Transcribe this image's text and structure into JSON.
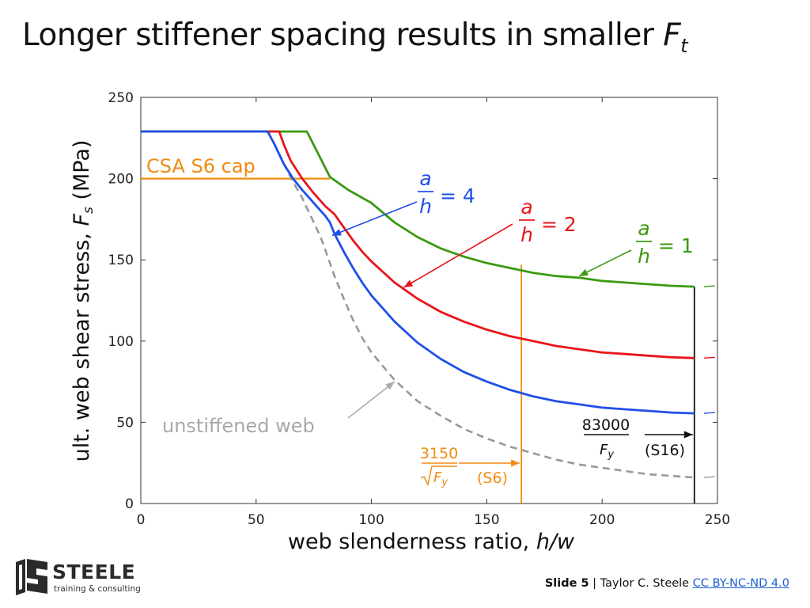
{
  "slide": {
    "title": "Longer stiffener spacing results in smaller ",
    "title_symbol": "F",
    "title_symbol_sub": "t"
  },
  "footer": {
    "slide_label": "Slide 5",
    "separator": " | ",
    "author": "Taylor C. Steele ",
    "license": "CC BY-NC-ND 4.0"
  },
  "logo": {
    "name": "STEELE",
    "tagline": "training & consulting"
  },
  "chart_data": {
    "type": "line",
    "xlabel_text": "web slenderness ratio, ",
    "xlabel_symbol": "h/w",
    "ylabel_text": "ult. web shear stress, ",
    "ylabel_symbol": "F",
    "ylabel_symbol_sub": "s",
    "ylabel_unit": " (MPa)",
    "xlim": [
      0,
      250
    ],
    "ylim": [
      0,
      250
    ],
    "xticks": [
      0,
      50,
      100,
      150,
      200,
      250
    ],
    "yticks": [
      0,
      50,
      100,
      150,
      200,
      250
    ],
    "grid": false,
    "colors": {
      "a_h_4": "#1f4fe8",
      "a_h_2": "#e8151b",
      "a_h_1": "#3a9a12",
      "unstiffened": "#999999",
      "csa": "#f08b12",
      "limit": "#111111"
    },
    "series": [
      {
        "key": "a_h_4",
        "label_num": "a",
        "label_den": "h",
        "label_eq": "= 4",
        "x": [
          0,
          55,
          58,
          62,
          66,
          70,
          75,
          80,
          82,
          84,
          88,
          92,
          96,
          100,
          110,
          120,
          130,
          140,
          150,
          160,
          170,
          180,
          190,
          200,
          210,
          220,
          230,
          240
        ],
        "y": [
          229,
          229,
          221,
          209,
          200,
          193,
          185,
          177,
          173,
          166,
          155,
          145,
          136,
          128,
          112,
          99,
          89,
          81,
          75,
          70,
          66,
          63,
          61,
          59,
          58,
          57,
          56,
          55.5
        ]
      },
      {
        "key": "a_h_2",
        "label_num": "a",
        "label_den": "h",
        "label_eq": "= 2",
        "x": [
          0,
          57,
          60,
          62,
          65,
          70,
          75,
          80,
          84,
          88,
          92,
          96,
          100,
          110,
          120,
          130,
          140,
          150,
          160,
          170,
          180,
          190,
          200,
          210,
          220,
          230,
          240
        ],
        "y": [
          229,
          229,
          229,
          221,
          211,
          200,
          191,
          183,
          178,
          170,
          162,
          155,
          149,
          136,
          126,
          118,
          112,
          107,
          103,
          100,
          97,
          95,
          93,
          92,
          91,
          90,
          89.5
        ]
      },
      {
        "key": "a_h_1",
        "label_num": "a",
        "label_den": "h",
        "label_eq": "= 1",
        "x": [
          0,
          72,
          82,
          90,
          100,
          110,
          120,
          130,
          140,
          150,
          160,
          170,
          180,
          190,
          200,
          210,
          220,
          230,
          240
        ],
        "y": [
          229,
          229,
          201,
          193,
          185,
          173,
          164,
          157,
          152,
          148,
          145,
          142,
          140,
          139,
          137,
          136,
          135,
          134,
          133.5
        ]
      },
      {
        "key": "unstiffened",
        "label": "unstiffened web",
        "x": [
          55,
          58,
          62,
          66,
          70,
          75,
          78,
          80,
          84,
          88,
          92,
          96,
          100,
          110,
          120,
          130,
          140,
          150,
          160,
          170,
          180,
          190,
          200,
          210,
          220,
          230,
          240
        ],
        "y": [
          229,
          221,
          209,
          198,
          188,
          173,
          164,
          156,
          140,
          126,
          113,
          102,
          93,
          76,
          63,
          54,
          46,
          40,
          35,
          31,
          27,
          24,
          22,
          20,
          18,
          17,
          16
        ]
      }
    ],
    "extensions": [
      {
        "key": "a_h_1",
        "y": 133.5
      },
      {
        "key": "a_h_2",
        "y": 89.5
      },
      {
        "key": "a_h_4",
        "y": 55.5
      },
      {
        "key": "unstiffened",
        "y": 16
      }
    ],
    "csa_cap": {
      "label": "CSA S6 cap",
      "y": 200,
      "x_start": 0,
      "x_end": 82
    },
    "csa_limit": {
      "x": 165,
      "numerator": "3150",
      "denominator": "Fy",
      "code": "(S6)"
    },
    "s16_limit": {
      "x": 240,
      "numerator": "83000",
      "denominator": "Fy",
      "code": "(S16)"
    }
  }
}
